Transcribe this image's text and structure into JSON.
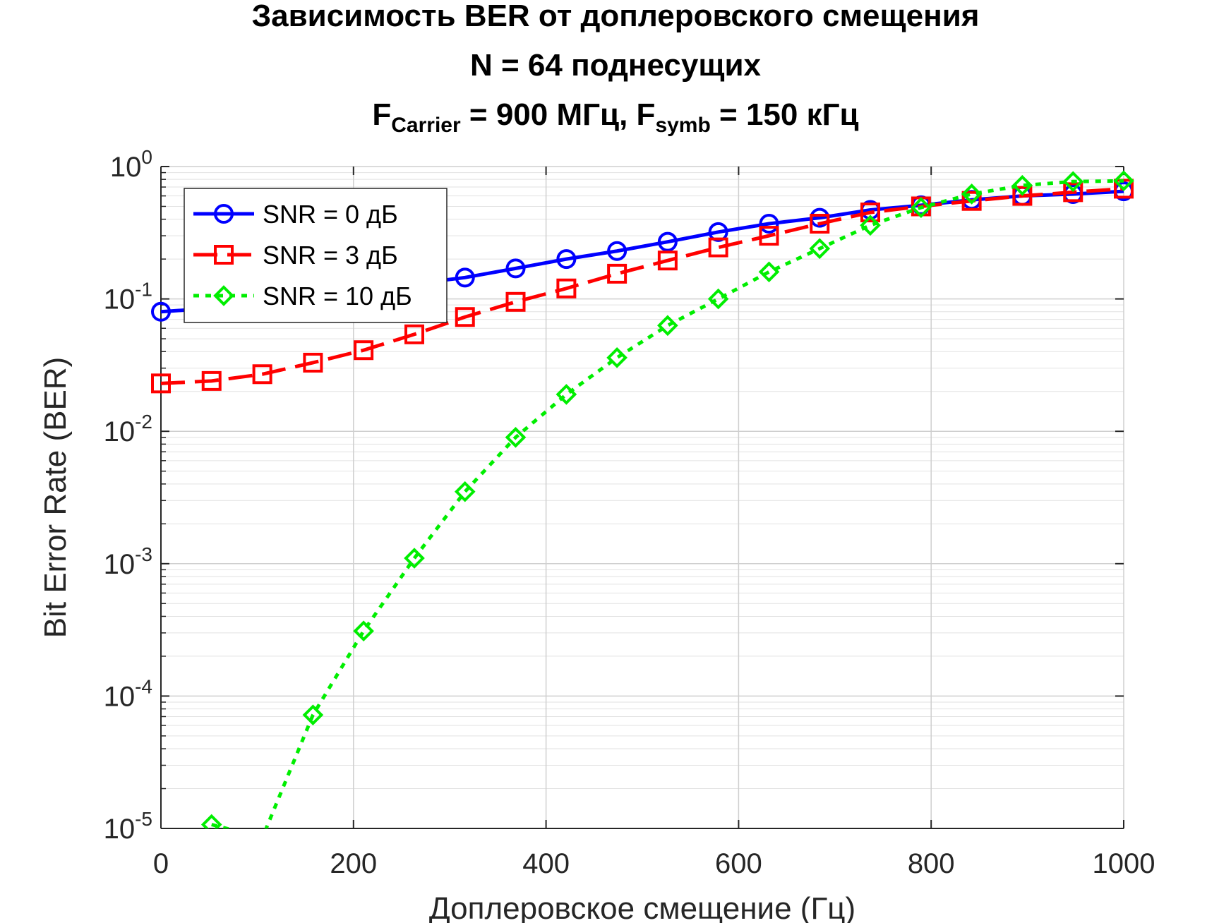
{
  "title": {
    "line1": "Зависимость BER от доплеровского смещения",
    "line2": "N = 64 поднесущих",
    "line3": {
      "f1_main": "F",
      "f1_sub": "Carrier",
      "f1_rest": " = 900 МГц, ",
      "f2_main": "F",
      "f2_sub": "symb",
      "f2_rest": " = 150 кГц"
    }
  },
  "chart_data": {
    "type": "line",
    "xlabel": "Доплеровское смещение (Гц)",
    "ylabel": "Bit Error Rate (BER)",
    "xlim": [
      0,
      1000
    ],
    "ylim": [
      1e-05,
      1
    ],
    "yscale": "log",
    "grid": true,
    "minor_grid": true,
    "legend_position": "top-left",
    "x_ticks": [
      {
        "value": 0,
        "label": "0"
      },
      {
        "value": 200,
        "label": "200"
      },
      {
        "value": 400,
        "label": "400"
      },
      {
        "value": 600,
        "label": "600"
      },
      {
        "value": 800,
        "label": "800"
      },
      {
        "value": 1000,
        "label": "1000"
      }
    ],
    "y_ticks": [
      {
        "value": 1,
        "base": "10",
        "exp": "0"
      },
      {
        "value": 0.1,
        "base": "10",
        "exp": "-1"
      },
      {
        "value": 0.01,
        "base": "10",
        "exp": "-2"
      },
      {
        "value": 0.001,
        "base": "10",
        "exp": "-3"
      },
      {
        "value": 0.0001,
        "base": "10",
        "exp": "-4"
      },
      {
        "value": 1e-05,
        "base": "10",
        "exp": "-5"
      }
    ],
    "series": [
      {
        "name": "SNR = 0 дБ",
        "color": "#0000ff",
        "line": "solid",
        "marker": "circle",
        "x": [
          0,
          52.6,
          105.3,
          157.9,
          210.5,
          263.2,
          315.8,
          368.4,
          421.1,
          473.7,
          526.3,
          578.9,
          631.6,
          684.2,
          736.8,
          789.5,
          842.1,
          894.7,
          947.4,
          1000
        ],
        "y": [
          0.08,
          0.085,
          0.095,
          0.105,
          0.115,
          0.13,
          0.145,
          0.17,
          0.2,
          0.23,
          0.27,
          0.32,
          0.37,
          0.41,
          0.47,
          0.51,
          0.56,
          0.6,
          0.62,
          0.65
        ]
      },
      {
        "name": "SNR = 3 дБ",
        "color": "#ff0000",
        "line": "dashed",
        "marker": "square",
        "x": [
          0,
          52.6,
          105.3,
          157.9,
          210.5,
          263.2,
          315.8,
          368.4,
          421.1,
          473.7,
          526.3,
          578.9,
          631.6,
          684.2,
          736.8,
          789.5,
          842.1,
          894.7,
          947.4,
          1000
        ],
        "y": [
          0.023,
          0.024,
          0.027,
          0.033,
          0.041,
          0.054,
          0.073,
          0.095,
          0.12,
          0.155,
          0.195,
          0.245,
          0.3,
          0.37,
          0.45,
          0.5,
          0.55,
          0.6,
          0.64,
          0.68
        ]
      },
      {
        "name": "SNR = 10 дБ",
        "color": "#00ee00",
        "line": "dotted",
        "marker": "diamond",
        "x": [
          52.6,
          105.3,
          157.9,
          210.5,
          263.2,
          315.8,
          368.4,
          421.1,
          473.7,
          526.3,
          578.9,
          631.6,
          684.2,
          736.8,
          789.5,
          842.1,
          894.7,
          947.4,
          1000
        ],
        "y": [
          1.07e-05,
          8.5e-06,
          7.2e-05,
          0.00031,
          0.0011,
          0.0035,
          0.009,
          0.019,
          0.036,
          0.063,
          0.1,
          0.16,
          0.24,
          0.36,
          0.49,
          0.62,
          0.72,
          0.77,
          0.78
        ]
      }
    ]
  }
}
